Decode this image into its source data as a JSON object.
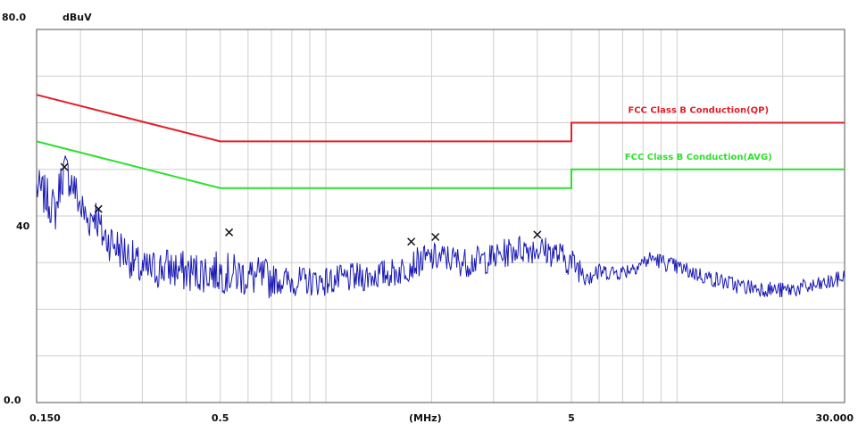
{
  "chart_data": {
    "type": "line",
    "ylabel": "dBuV",
    "xlabel": "(MHz)",
    "xscale": "log",
    "xlim": [
      0.15,
      30
    ],
    "ylim": [
      0,
      80
    ],
    "y_tick_labels": [
      "80.0",
      "40",
      "0.0"
    ],
    "x_tick_labels": [
      {
        "value": 0.15,
        "label": "0.150"
      },
      {
        "value": 0.5,
        "label": "0.5"
      },
      {
        "value": 5,
        "label": "5"
      },
      {
        "value": 30,
        "label": "30.000"
      }
    ],
    "grid": true,
    "limit_lines": [
      {
        "name": "FCC Class B Conduction(QP)",
        "color": "#e0202a",
        "points": [
          [
            0.15,
            66
          ],
          [
            0.5,
            56
          ],
          [
            5,
            56
          ],
          [
            5,
            60
          ],
          [
            30,
            60
          ]
        ]
      },
      {
        "name": "FCC Class B Conduction(AVG)",
        "color": "#2ee02e",
        "points": [
          [
            0.15,
            56
          ],
          [
            0.5,
            46
          ],
          [
            5,
            46
          ],
          [
            5,
            50
          ],
          [
            30,
            50
          ]
        ]
      }
    ],
    "measurement": {
      "color": "#1a1ab4",
      "profile": [
        [
          0.15,
          46
        ],
        [
          0.16,
          44
        ],
        [
          0.17,
          41
        ],
        [
          0.175,
          47
        ],
        [
          0.18,
          50
        ],
        [
          0.19,
          47
        ],
        [
          0.2,
          42
        ],
        [
          0.21,
          39
        ],
        [
          0.22,
          41
        ],
        [
          0.23,
          36
        ],
        [
          0.25,
          34
        ],
        [
          0.27,
          32
        ],
        [
          0.3,
          28
        ],
        [
          0.35,
          29
        ],
        [
          0.4,
          28
        ],
        [
          0.45,
          28
        ],
        [
          0.5,
          28
        ],
        [
          0.6,
          27
        ],
        [
          0.8,
          26
        ],
        [
          1.0,
          26
        ],
        [
          1.3,
          27
        ],
        [
          1.6,
          28
        ],
        [
          1.8,
          30
        ],
        [
          2.0,
          31
        ],
        [
          2.2,
          31
        ],
        [
          2.5,
          30
        ],
        [
          3.0,
          31
        ],
        [
          3.5,
          33
        ],
        [
          4.0,
          33
        ],
        [
          4.5,
          32
        ],
        [
          5.0,
          30
        ],
        [
          5.5,
          28
        ],
        [
          6.0,
          28
        ],
        [
          7.0,
          28
        ],
        [
          8.5,
          31
        ],
        [
          10,
          29
        ],
        [
          12,
          27
        ],
        [
          15,
          25
        ],
        [
          20,
          24
        ],
        [
          25,
          25
        ],
        [
          28,
          26
        ],
        [
          30,
          27
        ]
      ]
    },
    "peaks": [
      {
        "x": 0.18,
        "y": 50.5
      },
      {
        "x": 0.225,
        "y": 41.5
      },
      {
        "x": 0.53,
        "y": 36.5
      },
      {
        "x": 1.75,
        "y": 34.5
      },
      {
        "x": 2.05,
        "y": 35.5
      },
      {
        "x": 4.0,
        "y": 36
      }
    ]
  }
}
